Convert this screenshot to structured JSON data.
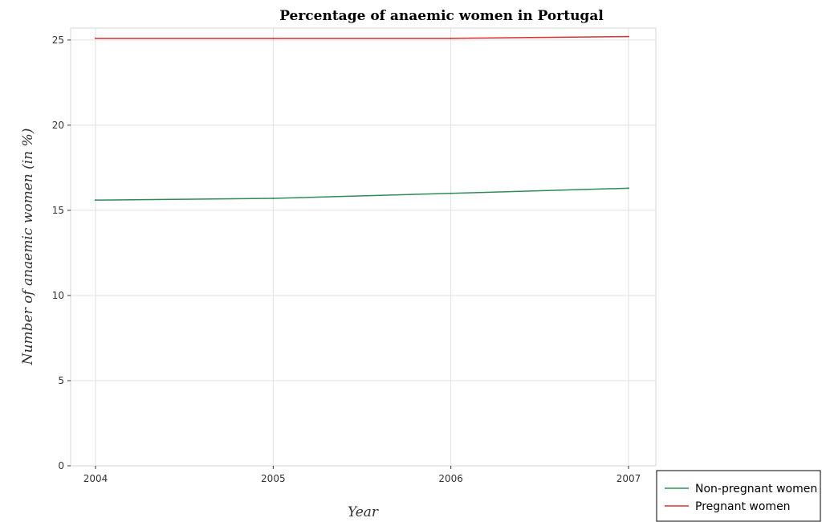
{
  "chart_data": {
    "type": "line",
    "title": "Percentage of anaemic women in Portugal",
    "xlabel": "Year",
    "ylabel": "Number of anaemic women (in %)",
    "categories": [
      "2004",
      "2005",
      "2006",
      "2007"
    ],
    "ylim": [
      0,
      25.7
    ],
    "yticks": [
      0,
      5,
      10,
      15,
      20,
      25
    ],
    "grid": true,
    "legend_position": "bottom-right",
    "series": [
      {
        "name": "Non-pregnant women",
        "color": "#2e8b57",
        "values": [
          15.6,
          15.7,
          16.0,
          16.3
        ]
      },
      {
        "name": "Pregnant women",
        "color": "#e03030",
        "values": [
          25.1,
          25.1,
          25.1,
          25.2
        ]
      }
    ]
  }
}
